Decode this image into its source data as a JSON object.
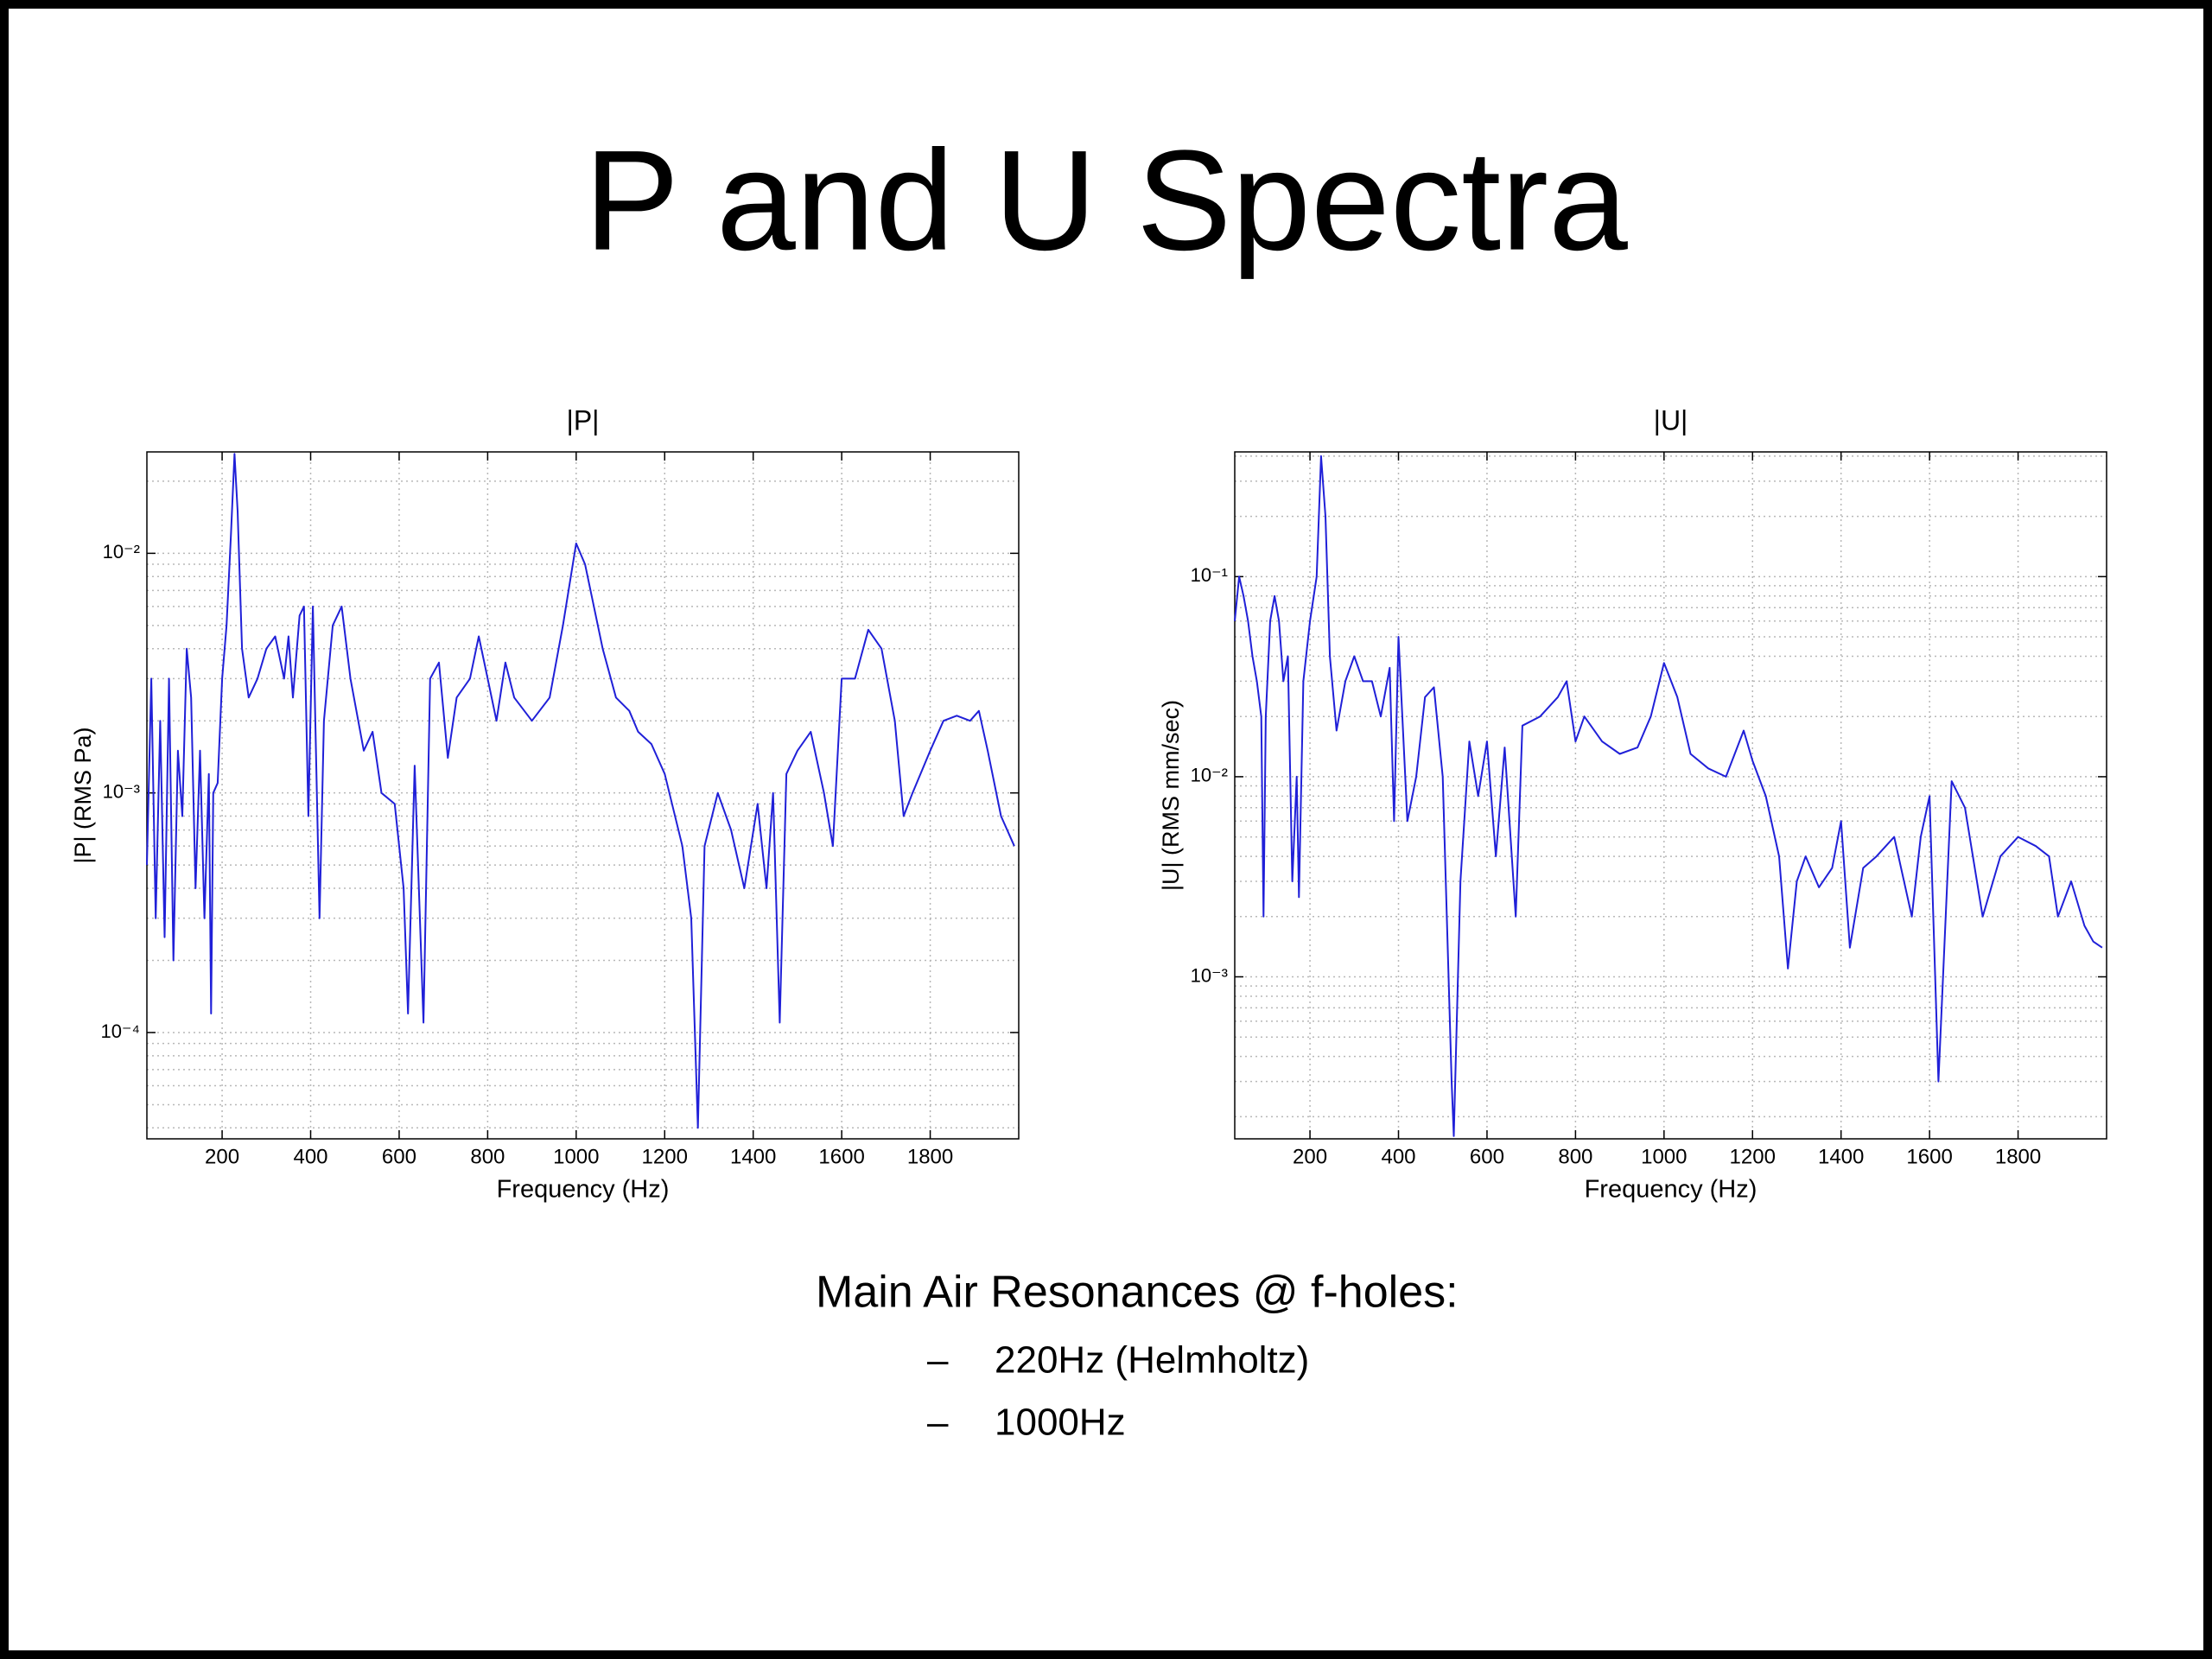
{
  "title": "P and U Spectra",
  "chart_data": [
    {
      "type": "line",
      "title": "|P|",
      "xlabel": "Frequency (Hz)",
      "ylabel": "|P| (RMS Pa)",
      "log_y": true,
      "grid": true,
      "color": "#2020d8",
      "xlim": [
        30,
        2000
      ],
      "xticks": [
        200,
        400,
        600,
        800,
        1000,
        1200,
        1400,
        1600,
        1800
      ],
      "ylim": [
        3.6e-05,
        0.0265
      ],
      "yticks": [
        {
          "value": 0.0001,
          "label": "10⁻⁴"
        },
        {
          "value": 0.001,
          "label": "10⁻³"
        },
        {
          "value": 0.01,
          "label": "10⁻²"
        }
      ],
      "yminorticks": [
        4e-05,
        5e-05,
        6e-05,
        7e-05,
        8e-05,
        9e-05,
        0.0002,
        0.0003,
        0.0004,
        0.0005,
        0.0006,
        0.0007,
        0.0008,
        0.0009,
        0.002,
        0.003,
        0.004,
        0.005,
        0.006,
        0.007,
        0.008,
        0.009,
        0.02
      ],
      "x": [
        30,
        40,
        50,
        60,
        70,
        80,
        90,
        100,
        110,
        120,
        130,
        140,
        150,
        160,
        170,
        175,
        180,
        190,
        200,
        210,
        220,
        228,
        235,
        245,
        260,
        280,
        300,
        320,
        340,
        350,
        360,
        375,
        385,
        395,
        405,
        420,
        430,
        450,
        470,
        490,
        520,
        540,
        560,
        590,
        610,
        620,
        635,
        655,
        670,
        690,
        710,
        730,
        760,
        780,
        800,
        820,
        840,
        860,
        900,
        940,
        970,
        1000,
        1020,
        1060,
        1090,
        1120,
        1140,
        1170,
        1200,
        1240,
        1260,
        1275,
        1290,
        1320,
        1350,
        1380,
        1410,
        1430,
        1445,
        1460,
        1475,
        1500,
        1530,
        1560,
        1580,
        1600,
        1630,
        1660,
        1690,
        1720,
        1740,
        1760,
        1800,
        1830,
        1860,
        1890,
        1910,
        1930,
        1960,
        1990
      ],
      "values": [
        0.0005,
        0.003,
        0.0003,
        0.002,
        0.00025,
        0.003,
        0.0002,
        0.0015,
        0.0008,
        0.004,
        0.0025,
        0.0004,
        0.0015,
        0.0003,
        0.0012,
        0.00012,
        0.001,
        0.0011,
        0.003,
        0.005,
        0.012,
        0.026,
        0.015,
        0.004,
        0.0025,
        0.003,
        0.004,
        0.0045,
        0.003,
        0.0045,
        0.0025,
        0.0055,
        0.006,
        0.0008,
        0.006,
        0.0003,
        0.002,
        0.005,
        0.006,
        0.003,
        0.0015,
        0.0018,
        0.001,
        0.0009,
        0.0004,
        0.00012,
        0.0013,
        0.00011,
        0.003,
        0.0035,
        0.0014,
        0.0025,
        0.003,
        0.0045,
        0.003,
        0.002,
        0.0035,
        0.0025,
        0.002,
        0.0025,
        0.005,
        0.011,
        0.009,
        0.004,
        0.0025,
        0.0022,
        0.0018,
        0.0016,
        0.0012,
        0.0006,
        0.0003,
        4e-05,
        0.0006,
        0.001,
        0.0007,
        0.0004,
        0.0009,
        0.0004,
        0.001,
        0.00011,
        0.0012,
        0.0015,
        0.0018,
        0.001,
        0.0006,
        0.003,
        0.003,
        0.0048,
        0.004,
        0.002,
        0.0008,
        0.001,
        0.0015,
        0.002,
        0.0021,
        0.002,
        0.0022,
        0.0015,
        0.0008,
        0.0006
      ]
    },
    {
      "type": "line",
      "title": "|U|",
      "xlabel": "Frequency (Hz)",
      "ylabel": "|U| (RMS mm/sec)",
      "log_y": true,
      "grid": true,
      "color": "#2020d8",
      "xlim": [
        30,
        2000
      ],
      "xticks": [
        200,
        400,
        600,
        800,
        1000,
        1200,
        1400,
        1600,
        1800
      ],
      "ylim": [
        0.000155,
        0.42
      ],
      "yticks": [
        {
          "value": 0.001,
          "label": "10⁻³"
        },
        {
          "value": 0.01,
          "label": "10⁻²"
        },
        {
          "value": 0.1,
          "label": "10⁻¹"
        }
      ],
      "yminorticks": [
        0.0002,
        0.0003,
        0.0004,
        0.0005,
        0.0006,
        0.0007,
        0.0008,
        0.0009,
        0.002,
        0.003,
        0.004,
        0.005,
        0.006,
        0.007,
        0.008,
        0.009,
        0.02,
        0.03,
        0.04,
        0.05,
        0.06,
        0.07,
        0.08,
        0.09,
        0.2,
        0.3,
        0.4
      ],
      "x": [
        30,
        40,
        50,
        60,
        70,
        80,
        90,
        95,
        100,
        110,
        120,
        130,
        140,
        150,
        160,
        170,
        175,
        185,
        200,
        215,
        225,
        235,
        245,
        260,
        280,
        300,
        320,
        340,
        360,
        380,
        390,
        400,
        420,
        440,
        460,
        480,
        500,
        520,
        525,
        540,
        560,
        580,
        600,
        620,
        640,
        665,
        680,
        720,
        760,
        780,
        800,
        820,
        860,
        900,
        940,
        970,
        1000,
        1030,
        1060,
        1100,
        1140,
        1180,
        1200,
        1230,
        1260,
        1280,
        1300,
        1320,
        1350,
        1380,
        1400,
        1420,
        1450,
        1480,
        1520,
        1560,
        1580,
        1600,
        1620,
        1650,
        1680,
        1720,
        1760,
        1800,
        1840,
        1870,
        1890,
        1920,
        1950,
        1970,
        1990
      ],
      "values": [
        0.06,
        0.1,
        0.08,
        0.06,
        0.04,
        0.03,
        0.02,
        0.002,
        0.02,
        0.06,
        0.08,
        0.06,
        0.03,
        0.04,
        0.003,
        0.01,
        0.0025,
        0.03,
        0.06,
        0.1,
        0.4,
        0.2,
        0.04,
        0.017,
        0.03,
        0.04,
        0.03,
        0.03,
        0.02,
        0.035,
        0.006,
        0.05,
        0.006,
        0.01,
        0.025,
        0.028,
        0.01,
        0.0003,
        0.00016,
        0.003,
        0.015,
        0.008,
        0.015,
        0.004,
        0.014,
        0.002,
        0.018,
        0.02,
        0.025,
        0.03,
        0.015,
        0.02,
        0.015,
        0.013,
        0.014,
        0.02,
        0.037,
        0.025,
        0.013,
        0.011,
        0.01,
        0.017,
        0.012,
        0.008,
        0.004,
        0.0011,
        0.003,
        0.004,
        0.0028,
        0.0035,
        0.006,
        0.0014,
        0.0035,
        0.004,
        0.005,
        0.002,
        0.005,
        0.008,
        0.0003,
        0.0095,
        0.007,
        0.002,
        0.004,
        0.005,
        0.0045,
        0.004,
        0.002,
        0.003,
        0.0018,
        0.0015,
        0.0014
      ]
    }
  ],
  "notes": {
    "heading": "Main Air Resonances @ f-holes:",
    "items": [
      {
        "marker": "–",
        "text": "220Hz (Helmholtz)"
      },
      {
        "marker": "–",
        "text": "1000Hz"
      }
    ]
  }
}
